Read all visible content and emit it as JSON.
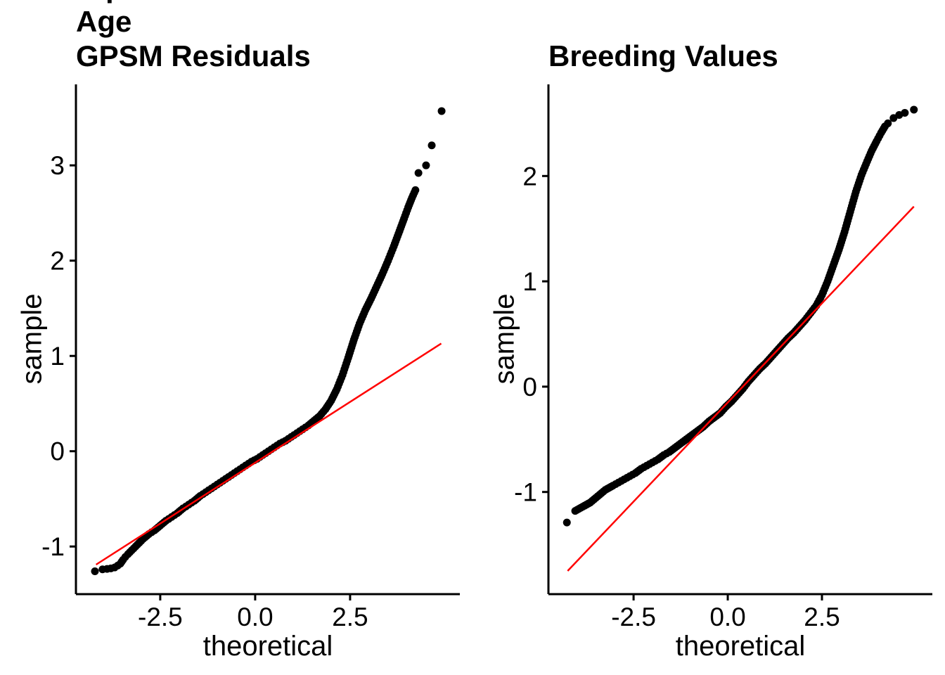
{
  "figure": {
    "background": "#FFFFFF"
  },
  "colors": {
    "points": "#000000",
    "axis": "#000000",
    "text": "#000000",
    "ref_line": "#FF0000"
  },
  "chart_data": [
    {
      "type": "scatter",
      "subtype": "qq-plot",
      "title": "Square Root Transformed Age\nGPSM Residuals",
      "xlabel": "theoretical",
      "ylabel": "sample",
      "grid": false,
      "legend": false,
      "xlim": [
        -4.72,
        5.39
      ],
      "ylim": [
        -1.5,
        3.85
      ],
      "x_tick_values": [
        -2.5,
        0,
        2.5
      ],
      "x_tick_labels": [
        "-2.5",
        "0.0",
        "2.5"
      ],
      "y_tick_values": [
        -1,
        0,
        1,
        2,
        3
      ],
      "y_tick_labels": [
        "-1",
        "0",
        "1",
        "2",
        "3"
      ],
      "ref_line": {
        "x1": -4.19,
        "y1": -1.19,
        "x2": 4.9,
        "y2": 1.13,
        "color": "#FF0000"
      },
      "qq_curve": [
        [
          -3.7,
          -1.22
        ],
        [
          -3.62,
          -1.2
        ],
        [
          -3.55,
          -1.18
        ],
        [
          -3.48,
          -1.14
        ],
        [
          -3.42,
          -1.11
        ],
        [
          -3.35,
          -1.08
        ],
        [
          -3.25,
          -1.04
        ],
        [
          -3.1,
          -0.98
        ],
        [
          -2.95,
          -0.92
        ],
        [
          -2.8,
          -0.87
        ],
        [
          -2.65,
          -0.83
        ],
        [
          -2.5,
          -0.78
        ],
        [
          -2.35,
          -0.73
        ],
        [
          -2.2,
          -0.69
        ],
        [
          -2.05,
          -0.65
        ],
        [
          -1.9,
          -0.6
        ],
        [
          -1.75,
          -0.56
        ],
        [
          -1.6,
          -0.52
        ],
        [
          -1.45,
          -0.47
        ],
        [
          -1.3,
          -0.43
        ],
        [
          -1.15,
          -0.39
        ],
        [
          -1.0,
          -0.35
        ],
        [
          -0.85,
          -0.31
        ],
        [
          -0.7,
          -0.27
        ],
        [
          -0.55,
          -0.23
        ],
        [
          -0.4,
          -0.19
        ],
        [
          -0.25,
          -0.15
        ],
        [
          -0.1,
          -0.11
        ],
        [
          0.05,
          -0.08
        ],
        [
          0.2,
          -0.04
        ],
        [
          0.35,
          0.0
        ],
        [
          0.5,
          0.04
        ],
        [
          0.65,
          0.08
        ],
        [
          0.8,
          0.11
        ],
        [
          0.95,
          0.15
        ],
        [
          1.1,
          0.19
        ],
        [
          1.25,
          0.23
        ],
        [
          1.4,
          0.27
        ],
        [
          1.55,
          0.32
        ],
        [
          1.7,
          0.37
        ],
        [
          1.85,
          0.44
        ],
        [
          2.0,
          0.53
        ],
        [
          2.15,
          0.65
        ],
        [
          2.3,
          0.8
        ],
        [
          2.45,
          0.98
        ],
        [
          2.6,
          1.17
        ],
        [
          2.75,
          1.34
        ],
        [
          2.9,
          1.48
        ],
        [
          3.05,
          1.6
        ],
        [
          3.2,
          1.73
        ],
        [
          3.35,
          1.86
        ],
        [
          3.5,
          2.0
        ],
        [
          3.65,
          2.15
        ],
        [
          3.8,
          2.31
        ],
        [
          3.92,
          2.44
        ],
        [
          4.03,
          2.56
        ],
        [
          4.13,
          2.66
        ],
        [
          4.22,
          2.74
        ]
      ],
      "outlier_points": [
        [
          -4.22,
          -1.26
        ],
        [
          -4.02,
          -1.24
        ],
        [
          -3.9,
          -1.235
        ],
        [
          -3.8,
          -1.23
        ],
        [
          4.3,
          2.92
        ],
        [
          4.5,
          3.0
        ],
        [
          4.65,
          3.21
        ],
        [
          4.91,
          3.57
        ]
      ]
    },
    {
      "type": "scatter",
      "subtype": "qq-plot",
      "title": "Breeding Values",
      "xlabel": "theoretical",
      "ylabel": "sample",
      "grid": false,
      "legend": false,
      "xlim": [
        -4.76,
        5.43
      ],
      "ylim": [
        -1.97,
        2.87
      ],
      "x_tick_values": [
        -2.5,
        0,
        2.5
      ],
      "x_tick_labels": [
        "-2.5",
        "0.0",
        "2.5"
      ],
      "y_tick_values": [
        -1,
        0,
        1,
        2
      ],
      "y_tick_labels": [
        "-1",
        "0",
        "1",
        "2"
      ],
      "ref_line": {
        "x1": -4.25,
        "y1": -1.75,
        "x2": 4.94,
        "y2": 1.71,
        "color": "#FF0000"
      },
      "qq_curve": [
        [
          -4.05,
          -1.18
        ],
        [
          -3.95,
          -1.16
        ],
        [
          -3.85,
          -1.14
        ],
        [
          -3.75,
          -1.12
        ],
        [
          -3.65,
          -1.1
        ],
        [
          -3.55,
          -1.07
        ],
        [
          -3.45,
          -1.04
        ],
        [
          -3.35,
          -1.01
        ],
        [
          -3.25,
          -0.98
        ],
        [
          -3.15,
          -0.96
        ],
        [
          -3.05,
          -0.94
        ],
        [
          -2.9,
          -0.91
        ],
        [
          -2.75,
          -0.88
        ],
        [
          -2.6,
          -0.85
        ],
        [
          -2.45,
          -0.82
        ],
        [
          -2.3,
          -0.78
        ],
        [
          -2.15,
          -0.75
        ],
        [
          -2.0,
          -0.72
        ],
        [
          -1.85,
          -0.69
        ],
        [
          -1.7,
          -0.65
        ],
        [
          -1.55,
          -0.62
        ],
        [
          -1.4,
          -0.58
        ],
        [
          -1.25,
          -0.54
        ],
        [
          -1.1,
          -0.5
        ],
        [
          -0.95,
          -0.46
        ],
        [
          -0.8,
          -0.42
        ],
        [
          -0.65,
          -0.38
        ],
        [
          -0.5,
          -0.33
        ],
        [
          -0.35,
          -0.29
        ],
        [
          -0.2,
          -0.25
        ],
        [
          -0.05,
          -0.19
        ],
        [
          0.1,
          -0.14
        ],
        [
          0.25,
          -0.08
        ],
        [
          0.4,
          -0.02
        ],
        [
          0.55,
          0.05
        ],
        [
          0.7,
          0.11
        ],
        [
          0.85,
          0.17
        ],
        [
          1.0,
          0.22
        ],
        [
          1.15,
          0.28
        ],
        [
          1.3,
          0.34
        ],
        [
          1.45,
          0.4
        ],
        [
          1.6,
          0.46
        ],
        [
          1.75,
          0.51
        ],
        [
          1.9,
          0.57
        ],
        [
          2.05,
          0.63
        ],
        [
          2.2,
          0.7
        ],
        [
          2.35,
          0.77
        ],
        [
          2.5,
          0.87
        ],
        [
          2.65,
          1.0
        ],
        [
          2.8,
          1.15
        ],
        [
          2.95,
          1.3
        ],
        [
          3.1,
          1.47
        ],
        [
          3.25,
          1.66
        ],
        [
          3.4,
          1.85
        ],
        [
          3.55,
          2.01
        ],
        [
          3.7,
          2.14
        ],
        [
          3.82,
          2.24
        ],
        [
          3.95,
          2.33
        ],
        [
          4.07,
          2.41
        ],
        [
          4.17,
          2.47
        ]
      ],
      "outlier_points": [
        [
          -4.27,
          -1.29
        ],
        [
          4.25,
          2.5
        ],
        [
          4.4,
          2.55
        ],
        [
          4.55,
          2.58
        ],
        [
          4.7,
          2.6
        ],
        [
          4.94,
          2.63
        ]
      ]
    }
  ]
}
